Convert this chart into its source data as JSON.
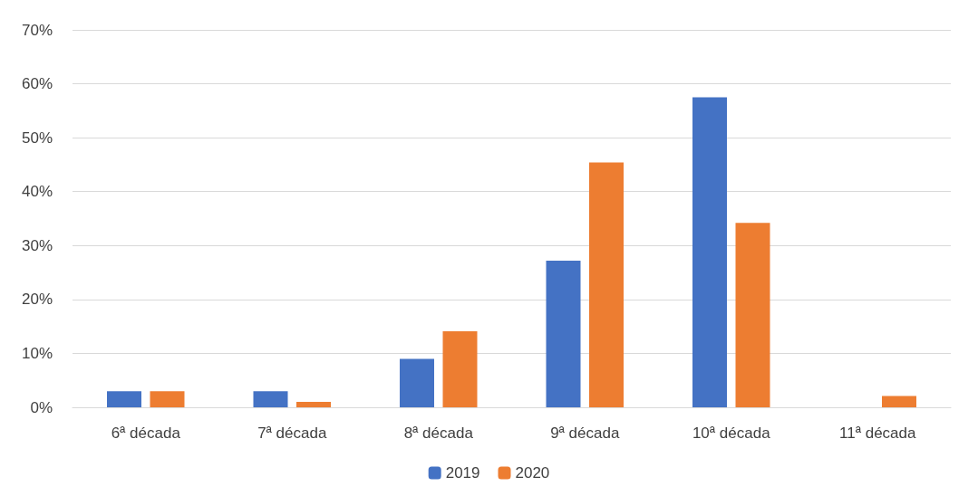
{
  "chart_data": {
    "type": "bar",
    "categories": [
      "6ª década",
      "7ª década",
      "8ª década",
      "9ª década",
      "10ª década",
      "11ª década"
    ],
    "series": [
      {
        "name": "2019",
        "color": "#4472c4",
        "values": [
          3,
          3,
          9,
          27.2,
          57.5,
          0
        ]
      },
      {
        "name": "2020",
        "color": "#ed7d31",
        "values": [
          3,
          1,
          14.1,
          45.4,
          34.2,
          2.1
        ]
      }
    ],
    "ylim": [
      0,
      70
    ],
    "yticks": [
      {
        "value": 0,
        "label": "0%"
      },
      {
        "value": 10,
        "label": "10%"
      },
      {
        "value": 20,
        "label": "20%"
      },
      {
        "value": 30,
        "label": "30%"
      },
      {
        "value": 40,
        "label": "40%"
      },
      {
        "value": 50,
        "label": "50%"
      },
      {
        "value": 60,
        "label": "60%"
      },
      {
        "value": 70,
        "label": "70%"
      }
    ],
    "grid": "y",
    "legend": "bottom"
  }
}
